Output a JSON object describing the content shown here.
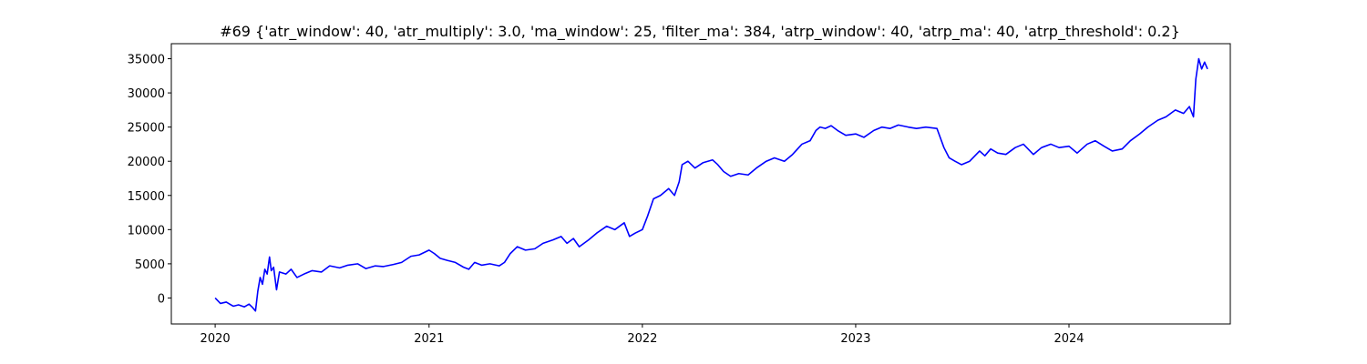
{
  "chart_data": {
    "type": "line",
    "title": "#69 {'atr_window': 40, 'atr_multiply': 3.0, 'ma_window': 25, 'filter_ma': 384, 'atrp_window': 40, 'atrp_ma': 40, 'atrp_threshold': 0.2}",
    "xlabel": "",
    "ylabel": "",
    "x_range": [
      "2019-10-18",
      "2024-10-03"
    ],
    "ylim": [
      -3800,
      37200
    ],
    "x_ticks": [
      {
        "date": "2020-01-01",
        "label": "2020"
      },
      {
        "date": "2021-01-01",
        "label": "2021"
      },
      {
        "date": "2022-01-01",
        "label": "2022"
      },
      {
        "date": "2023-01-01",
        "label": "2023"
      },
      {
        "date": "2024-01-01",
        "label": "2024"
      }
    ],
    "y_ticks": [
      {
        "value": 0,
        "label": "0"
      },
      {
        "value": 5000,
        "label": "5000"
      },
      {
        "value": 10000,
        "label": "10000"
      },
      {
        "value": 15000,
        "label": "15000"
      },
      {
        "value": 20000,
        "label": "20000"
      },
      {
        "value": 25000,
        "label": "25000"
      },
      {
        "value": 30000,
        "label": "30000"
      },
      {
        "value": 35000,
        "label": "35000"
      }
    ],
    "grid": false,
    "legend": "none",
    "series": [
      {
        "color": "#0000ff",
        "points": [
          [
            "2020-01-01",
            0
          ],
          [
            "2020-01-10",
            -800
          ],
          [
            "2020-01-20",
            -600
          ],
          [
            "2020-02-01",
            -1200
          ],
          [
            "2020-02-10",
            -1000
          ],
          [
            "2020-02-20",
            -1300
          ],
          [
            "2020-02-28",
            -900
          ],
          [
            "2020-03-05",
            -1400
          ],
          [
            "2020-03-10",
            -1900
          ],
          [
            "2020-03-14",
            1000
          ],
          [
            "2020-03-18",
            3000
          ],
          [
            "2020-03-22",
            2000
          ],
          [
            "2020-03-26",
            4200
          ],
          [
            "2020-03-30",
            3500
          ],
          [
            "2020-04-03",
            6000
          ],
          [
            "2020-04-06",
            4000
          ],
          [
            "2020-04-10",
            4500
          ],
          [
            "2020-04-15",
            1200
          ],
          [
            "2020-04-20",
            3800
          ],
          [
            "2020-05-01",
            3500
          ],
          [
            "2020-05-10",
            4200
          ],
          [
            "2020-05-20",
            3000
          ],
          [
            "2020-06-01",
            3500
          ],
          [
            "2020-06-15",
            4000
          ],
          [
            "2020-07-01",
            3800
          ],
          [
            "2020-07-15",
            4700
          ],
          [
            "2020-08-01",
            4400
          ],
          [
            "2020-08-15",
            4800
          ],
          [
            "2020-09-01",
            5000
          ],
          [
            "2020-09-15",
            4300
          ],
          [
            "2020-10-01",
            4700
          ],
          [
            "2020-10-15",
            4600
          ],
          [
            "2020-11-01",
            4900
          ],
          [
            "2020-11-15",
            5200
          ],
          [
            "2020-12-01",
            6100
          ],
          [
            "2020-12-15",
            6300
          ],
          [
            "2021-01-01",
            7000
          ],
          [
            "2021-01-10",
            6500
          ],
          [
            "2021-01-20",
            5800
          ],
          [
            "2021-02-01",
            5500
          ],
          [
            "2021-02-15",
            5200
          ],
          [
            "2021-03-01",
            4500
          ],
          [
            "2021-03-10",
            4200
          ],
          [
            "2021-03-20",
            5200
          ],
          [
            "2021-04-01",
            4800
          ],
          [
            "2021-04-15",
            5000
          ],
          [
            "2021-05-01",
            4700
          ],
          [
            "2021-05-10",
            5200
          ],
          [
            "2021-05-20",
            6500
          ],
          [
            "2021-06-01",
            7500
          ],
          [
            "2021-06-15",
            7000
          ],
          [
            "2021-07-01",
            7200
          ],
          [
            "2021-07-15",
            8000
          ],
          [
            "2021-08-01",
            8500
          ],
          [
            "2021-08-15",
            9000
          ],
          [
            "2021-08-25",
            8000
          ],
          [
            "2021-09-05",
            8700
          ],
          [
            "2021-09-15",
            7500
          ],
          [
            "2021-10-01",
            8500
          ],
          [
            "2021-10-15",
            9500
          ],
          [
            "2021-11-01",
            10500
          ],
          [
            "2021-11-15",
            10000
          ],
          [
            "2021-12-01",
            11000
          ],
          [
            "2021-12-10",
            9000
          ],
          [
            "2021-12-20",
            9500
          ],
          [
            "2022-01-01",
            10000
          ],
          [
            "2022-01-10",
            12000
          ],
          [
            "2022-01-20",
            14500
          ],
          [
            "2022-02-01",
            15000
          ],
          [
            "2022-02-15",
            16000
          ],
          [
            "2022-02-25",
            15000
          ],
          [
            "2022-03-05",
            17000
          ],
          [
            "2022-03-10",
            19500
          ],
          [
            "2022-03-20",
            20000
          ],
          [
            "2022-04-01",
            19000
          ],
          [
            "2022-04-15",
            19800
          ],
          [
            "2022-05-01",
            20200
          ],
          [
            "2022-05-10",
            19500
          ],
          [
            "2022-05-20",
            18500
          ],
          [
            "2022-06-01",
            17800
          ],
          [
            "2022-06-15",
            18200
          ],
          [
            "2022-07-01",
            18000
          ],
          [
            "2022-07-15",
            19000
          ],
          [
            "2022-08-01",
            20000
          ],
          [
            "2022-08-15",
            20500
          ],
          [
            "2022-09-01",
            20000
          ],
          [
            "2022-09-15",
            21000
          ],
          [
            "2022-10-01",
            22500
          ],
          [
            "2022-10-15",
            23000
          ],
          [
            "2022-10-25",
            24500
          ],
          [
            "2022-11-01",
            25000
          ],
          [
            "2022-11-10",
            24800
          ],
          [
            "2022-11-20",
            25200
          ],
          [
            "2022-12-01",
            24500
          ],
          [
            "2022-12-15",
            23800
          ],
          [
            "2023-01-01",
            24000
          ],
          [
            "2023-01-15",
            23500
          ],
          [
            "2023-02-01",
            24500
          ],
          [
            "2023-02-15",
            25000
          ],
          [
            "2023-03-01",
            24800
          ],
          [
            "2023-03-15",
            25300
          ],
          [
            "2023-04-01",
            25000
          ],
          [
            "2023-04-15",
            24800
          ],
          [
            "2023-05-01",
            25000
          ],
          [
            "2023-05-20",
            24800
          ],
          [
            "2023-06-01",
            22000
          ],
          [
            "2023-06-10",
            20500
          ],
          [
            "2023-06-20",
            20000
          ],
          [
            "2023-07-01",
            19500
          ],
          [
            "2023-07-15",
            20000
          ],
          [
            "2023-08-01",
            21500
          ],
          [
            "2023-08-10",
            20800
          ],
          [
            "2023-08-20",
            21800
          ],
          [
            "2023-09-01",
            21200
          ],
          [
            "2023-09-15",
            21000
          ],
          [
            "2023-10-01",
            22000
          ],
          [
            "2023-10-15",
            22500
          ],
          [
            "2023-11-01",
            21000
          ],
          [
            "2023-11-15",
            22000
          ],
          [
            "2023-12-01",
            22500
          ],
          [
            "2023-12-15",
            22000
          ],
          [
            "2024-01-01",
            22200
          ],
          [
            "2024-01-15",
            21200
          ],
          [
            "2024-02-01",
            22500
          ],
          [
            "2024-02-15",
            23000
          ],
          [
            "2024-03-01",
            22200
          ],
          [
            "2024-03-15",
            21500
          ],
          [
            "2024-04-01",
            21800
          ],
          [
            "2024-04-15",
            23000
          ],
          [
            "2024-05-01",
            24000
          ],
          [
            "2024-05-15",
            25000
          ],
          [
            "2024-06-01",
            26000
          ],
          [
            "2024-06-15",
            26500
          ],
          [
            "2024-07-01",
            27500
          ],
          [
            "2024-07-15",
            27000
          ],
          [
            "2024-07-25",
            28000
          ],
          [
            "2024-08-01",
            26500
          ],
          [
            "2024-08-05",
            32000
          ],
          [
            "2024-08-10",
            35000
          ],
          [
            "2024-08-15",
            33500
          ],
          [
            "2024-08-20",
            34500
          ],
          [
            "2024-08-25",
            33500
          ]
        ]
      }
    ]
  }
}
